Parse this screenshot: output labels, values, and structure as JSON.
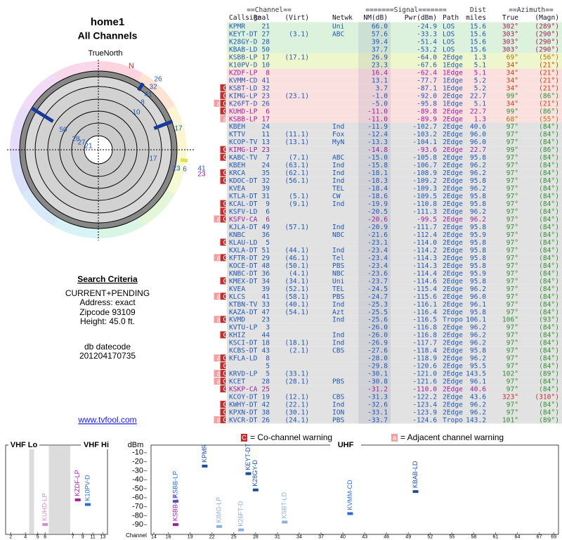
{
  "header": {
    "title": "home1",
    "subtitle": "All Channels",
    "north_label": "TrueNorth"
  },
  "polar": {
    "north": "N",
    "labels": [
      "26",
      "32",
      "41",
      "8",
      "10",
      "50",
      "28",
      "27",
      "21",
      "17",
      "17",
      "23",
      "6",
      "41",
      "23"
    ]
  },
  "criteria": {
    "heading": "Search Criteria",
    "lines": [
      "CURRENT+PENDING",
      "Address: exact",
      "Zipcode 93109",
      "Height: 45.0 ft."
    ],
    "db_label": "db datecode",
    "db_value": "201204170735",
    "link": "www.tvfool.com"
  },
  "table": {
    "group_headers": [
      "==Channel==",
      "=======Signal=======",
      "Dist",
      "==Azimuth=="
    ],
    "columns": [
      "Callsign",
      "Real",
      "(Virt)",
      "Netwk",
      "NM(dB)",
      "Pwr(dBm)",
      "Path",
      "miles",
      "True",
      "(Magn)"
    ],
    "rows": [
      [
        null,
        "KPMR",
        "21",
        null,
        "Uni",
        "66.0",
        "-24.9",
        "LOS",
        "15.6",
        "302°",
        "(289°)"
      ],
      [
        null,
        "KEYT-DT",
        "27",
        "(3.1)",
        "ABC",
        "57.6",
        "-33.3",
        "LOS",
        "15.6",
        "303°",
        "(290°)"
      ],
      [
        null,
        "K28GY-D",
        "28",
        null,
        null,
        "39.4",
        "-51.4",
        "LOS",
        "15.6",
        "303°",
        "(290°)"
      ],
      [
        null,
        "KBAB-LD",
        "50",
        null,
        null,
        "37.7",
        "-53.2",
        "LOS",
        "15.6",
        "303°",
        "(290°)"
      ],
      [
        null,
        "KSBB-LP",
        "17",
        "(17.1)",
        null,
        "26.9",
        "-64.0",
        "2Edge",
        "1.3",
        "69°",
        "(56°)"
      ],
      [
        null,
        "K10PV-D",
        "10",
        null,
        null,
        "23.3",
        "-67.6",
        "1Edge",
        "5.1",
        "34°",
        "(21°)"
      ],
      [
        null,
        "KZDF-LP",
        "8",
        null,
        null,
        "16.4",
        "-62.4",
        "1Edge",
        "5.1",
        "34°",
        "(21°)"
      ],
      [
        null,
        "KVMM-CD",
        "41",
        null,
        null,
        "13.1",
        "-77.7",
        "1Edge",
        "5.2",
        "34°",
        "(21°)"
      ],
      [
        "C",
        "KSBT-LD",
        "32",
        null,
        null,
        "3.7",
        "-87.1",
        "1Edge",
        "5.2",
        "34°",
        "(21°)"
      ],
      [
        "C",
        "KIMG-LP",
        "23",
        "(23.1)",
        null,
        "-1.0",
        "-92.0",
        "2Edge",
        "22.7",
        "99°",
        "(86°)"
      ],
      [
        "aC",
        "K26FT-D",
        "26",
        null,
        null,
        "-5.0",
        "-95.8",
        "1Edge",
        "5.1",
        "34°",
        "(21°)"
      ],
      [
        "C",
        "KUHD-LP",
        "6",
        null,
        null,
        "-11.0",
        "-89.8",
        "2Edge",
        "22.7",
        "99°",
        "(86°)"
      ],
      [
        "a",
        "KSBB-LP",
        "17",
        null,
        null,
        "-11.0",
        "-89.9",
        "2Edge",
        "1.3",
        "68°",
        "(55°)"
      ],
      [
        null,
        "KBEH",
        "24",
        null,
        "Ind",
        "-11.9",
        "-102.7",
        "2Edge",
        "40.6",
        "97°",
        "(84°)"
      ],
      [
        null,
        "KTTV",
        "11",
        "(11.1)",
        "Fox",
        "-12.4",
        "-103.2",
        "2Edge",
        "96.0",
        "97°",
        "(84°)"
      ],
      [
        null,
        "KCOP-TV",
        "13",
        "(13.1)",
        "MyN",
        "-13.3",
        "-104.1",
        "2Edge",
        "96.0",
        "97°",
        "(84°)"
      ],
      [
        "C",
        "KIMG-LP",
        "23",
        null,
        null,
        "-14.8",
        "-93.6",
        "2Edge",
        "22.7",
        "99°",
        "(86°)"
      ],
      [
        "C",
        "KABC-TV",
        "7",
        "(7.1)",
        "ABC",
        "-15.0",
        "-105.8",
        "2Edge",
        "95.8",
        "97°",
        "(84°)"
      ],
      [
        null,
        "KBEH",
        "24",
        "(63.1)",
        "Ind",
        "-15.8",
        "-106.7",
        "2Edge",
        "96.2",
        "97°",
        "(84°)"
      ],
      [
        "C",
        "KRCA",
        "35",
        "(62.1)",
        "Ind",
        "-18.1",
        "-108.9",
        "2Edge",
        "96.2",
        "97°",
        "(84°)"
      ],
      [
        "C",
        "KDOC-DT",
        "32",
        "(56.1)",
        "Ind",
        "-18.3",
        "-109.2",
        "2Edge",
        "95.8",
        "97°",
        "(84°)"
      ],
      [
        null,
        "KVEA",
        "39",
        null,
        "TEL",
        "-18.4",
        "-109.3",
        "2Edge",
        "96.2",
        "97°",
        "(84°)"
      ],
      [
        null,
        "KTLA-DT",
        "31",
        "(5.1)",
        "CW",
        "-18.6",
        "-109.5",
        "2Edge",
        "95.8",
        "97°",
        "(84°)"
      ],
      [
        "C",
        "KCAL-DT",
        "9",
        "(9.1)",
        "Ind",
        "-19.9",
        "-110.8",
        "2Edge",
        "95.8",
        "97°",
        "(84°)"
      ],
      [
        "C",
        "KSFV-LD",
        "6",
        null,
        null,
        "-20.5",
        "-111.3",
        "2Edge",
        "96.2",
        "97°",
        "(84°)"
      ],
      [
        "aC",
        "KSFV-CA",
        "6",
        null,
        null,
        "-20.6",
        "-99.5",
        "2Edge",
        "96.2",
        "97°",
        "(84°)"
      ],
      [
        null,
        "KJLA-DT",
        "49",
        "(57.1)",
        "Ind",
        "-20.9",
        "-111.7",
        "2Edge",
        "95.8",
        "97°",
        "(84°)"
      ],
      [
        null,
        "KNBC",
        "36",
        null,
        "NBC",
        "-21.6",
        "-112.4",
        "2Edge",
        "95.9",
        "97°",
        "(84°)"
      ],
      [
        "C",
        "KLAU-LD",
        "5",
        null,
        null,
        "-23.1",
        "-114.0",
        "2Edge",
        "95.8",
        "97°",
        "(84°)"
      ],
      [
        null,
        "KXLA-DT",
        "51",
        "(44.1)",
        "Ind",
        "-23.4",
        "-114.2",
        "2Edge",
        "95.8",
        "97°",
        "(84°)"
      ],
      [
        "aC",
        "KFTR-DT",
        "29",
        "(46.1)",
        "Tel",
        "-23.4",
        "-114.3",
        "2Edge",
        "95.8",
        "97°",
        "(84°)"
      ],
      [
        null,
        "KOCE-DT",
        "48",
        "(50.1)",
        "PBS",
        "-23.4",
        "-114.3",
        "2Edge",
        "95.8",
        "97°",
        "(84°)"
      ],
      [
        null,
        "KNBC-DT",
        "36",
        "(4.1)",
        "NBC",
        "-23.6",
        "-114.4",
        "2Edge",
        "95.9",
        "97°",
        "(84°)"
      ],
      [
        "C",
        "KMEX-DT",
        "34",
        "(34.1)",
        "Uni",
        "-23.7",
        "-114.6",
        "2Edge",
        "95.8",
        "97°",
        "(84°)"
      ],
      [
        null,
        "KVEA",
        "39",
        "(52.1)",
        "TEL",
        "-24.5",
        "-115.4",
        "2Edge",
        "96.2",
        "97°",
        "(84°)"
      ],
      [
        "aC",
        "KLCS",
        "41",
        "(58.1)",
        "PBS",
        "-24.7",
        "-115.6",
        "2Edge",
        "96.0",
        "97°",
        "(84°)"
      ],
      [
        null,
        "KTBN-TV",
        "33",
        "(40.1)",
        "Ind",
        "-25.3",
        "-116.1",
        "2Edge",
        "96.1",
        "97°",
        "(84°)"
      ],
      [
        null,
        "KAZA-DT",
        "47",
        "(54.1)",
        "Azt",
        "-25.5",
        "-116.4",
        "2Edge",
        "95.8",
        "97°",
        "(84°)"
      ],
      [
        "aC",
        "KVMD",
        "23",
        null,
        "Ind",
        "-25.6",
        "-116.5",
        "Tropo",
        "106.1",
        "106°",
        "(93°)"
      ],
      [
        null,
        "KVTU-LP",
        "3",
        null,
        null,
        "-26.0",
        "-116.8",
        "2Edge",
        "96.2",
        "97°",
        "(84°)"
      ],
      [
        "C",
        "KHIZ",
        "44",
        null,
        "Ind",
        "-26.0",
        "-116.8",
        "2Edge",
        "96.2",
        "97°",
        "(84°)"
      ],
      [
        null,
        "KSCI-DT",
        "18",
        "(18.1)",
        "Ind",
        "-26.9",
        "-117.7",
        "2Edge",
        "96.2",
        "97°",
        "(84°)"
      ],
      [
        null,
        "KCBS-DT",
        "43",
        "(2.1)",
        "CBS",
        "-27.6",
        "-118.4",
        "2Edge",
        "95.8",
        "97°",
        "(84°)"
      ],
      [
        "aC",
        "KFLA-LD",
        "8",
        null,
        null,
        "-28.0",
        "-118.9",
        "2Edge",
        "96.2",
        "97°",
        "(84°)"
      ],
      [
        "C",
        null,
        "5",
        null,
        null,
        "-29.8",
        "-120.6",
        "2Edge",
        "95.5",
        "97°",
        "(84°)"
      ],
      [
        "aC",
        "KRVD-LP",
        "5",
        "(33.1)",
        null,
        "-30.1",
        "-121.0",
        "2Edge",
        "143.5",
        "102°",
        "(89°)"
      ],
      [
        "aC",
        "KCET",
        "28",
        "(28.1)",
        "PBS",
        "-30.8",
        "-121.6",
        "2Edge",
        "96.1",
        "97°",
        "(84°)"
      ],
      [
        "C",
        "KSKP-CA",
        "25",
        null,
        null,
        "-31.2",
        "-110.0",
        "2Edge",
        "40.6",
        "97°",
        "(84°)"
      ],
      [
        null,
        "KCOY-DT",
        "19",
        "(12.1)",
        "CBS",
        "-31.3",
        "-122.2",
        "2Edge",
        "43.6",
        "323°",
        "(310°)"
      ],
      [
        "C",
        "KWHY-DT",
        "42",
        "(22.1)",
        "Ind",
        "-32.6",
        "-123.4",
        "2Edge",
        "96.2",
        "97°",
        "(84°)"
      ],
      [
        "C",
        "KPXN-DT",
        "38",
        "(30.1)",
        "ION",
        "-33.1",
        "-123.9",
        "2Edge",
        "96.2",
        "97°",
        "(84°)"
      ],
      [
        "aC",
        "KVCR-DT",
        "26",
        "(24.1)",
        "PBS",
        "-33.7",
        "-124.6",
        "Tropo",
        "143.2",
        "101°",
        "(89°)"
      ]
    ],
    "row_styles": [
      [
        "#dcf2dc",
        "#2058b8",
        "#a02060"
      ],
      [
        "#dcf2dc",
        "#2058b8",
        "#a02060"
      ],
      [
        "#dcf2dc",
        "#2058b8",
        "#a02060"
      ],
      [
        "#dcf2dc",
        "#2058b8",
        "#a02060"
      ],
      [
        "#eef6cc",
        "#2058b8",
        "#c07000"
      ],
      [
        "#eef6cc",
        "#2058b8",
        "#d04000"
      ],
      [
        "#fbe0e0",
        "#a020a0",
        "#d04000"
      ],
      [
        "#fbe0e0",
        "#2058b8",
        "#d04000"
      ],
      [
        "#fbe0e0",
        "#2058b8",
        "#d04000"
      ],
      [
        "#fbe0e0",
        "#2058b8",
        "#309030"
      ],
      [
        "#fbe0e0",
        "#2058b8",
        "#d04000"
      ],
      [
        "#fbe0e0",
        "#a020a0",
        "#309030"
      ],
      [
        "#fbe0e0",
        "#a020a0",
        "#c07000"
      ],
      [
        "#e2e2e2",
        "#2058b8",
        "#309030"
      ],
      [
        "#e2e2e2",
        "#2058b8",
        "#309030"
      ],
      [
        "#e2e2e2",
        "#2058b8",
        "#309030"
      ],
      [
        "#e2e2e2",
        "#a020a0",
        "#309030"
      ],
      [
        "#e2e2e2",
        "#2058b8",
        "#309030"
      ],
      [
        "#e2e2e2",
        "#2058b8",
        "#309030"
      ],
      [
        "#e2e2e2",
        "#2058b8",
        "#309030"
      ],
      [
        "#e2e2e2",
        "#2058b8",
        "#309030"
      ],
      [
        "#e2e2e2",
        "#2058b8",
        "#309030"
      ],
      [
        "#e2e2e2",
        "#2058b8",
        "#309030"
      ],
      [
        "#e2e2e2",
        "#2058b8",
        "#309030"
      ],
      [
        "#e2e2e2",
        "#2058b8",
        "#309030"
      ],
      [
        "#e2e2e2",
        "#a020a0",
        "#309030"
      ],
      [
        "#e2e2e2",
        "#2058b8",
        "#309030"
      ],
      [
        "#e2e2e2",
        "#2058b8",
        "#309030"
      ],
      [
        "#e2e2e2",
        "#2058b8",
        "#309030"
      ],
      [
        "#e2e2e2",
        "#2058b8",
        "#309030"
      ],
      [
        "#e2e2e2",
        "#2058b8",
        "#309030"
      ],
      [
        "#e2e2e2",
        "#2058b8",
        "#309030"
      ],
      [
        "#e2e2e2",
        "#2058b8",
        "#309030"
      ],
      [
        "#e2e2e2",
        "#2058b8",
        "#309030"
      ],
      [
        "#e2e2e2",
        "#2058b8",
        "#309030"
      ],
      [
        "#e2e2e2",
        "#2058b8",
        "#309030"
      ],
      [
        "#e2e2e2",
        "#2058b8",
        "#309030"
      ],
      [
        "#e2e2e2",
        "#2058b8",
        "#309030"
      ],
      [
        "#e2e2e2",
        "#2058b8",
        "#309030"
      ],
      [
        "#e2e2e2",
        "#2058b8",
        "#309030"
      ],
      [
        "#e2e2e2",
        "#2058b8",
        "#309030"
      ],
      [
        "#e2e2e2",
        "#2058b8",
        "#309030"
      ],
      [
        "#e2e2e2",
        "#2058b8",
        "#309030"
      ],
      [
        "#e2e2e2",
        "#2058b8",
        "#309030"
      ],
      [
        "#e2e2e2",
        "#2058b8",
        "#309030"
      ],
      [
        "#e2e2e2",
        "#2058b8",
        "#309030"
      ],
      [
        "#e2e2e2",
        "#2058b8",
        "#309030"
      ],
      [
        "#e2e2e2",
        "#a020a0",
        "#309030"
      ],
      [
        "#e2e2e2",
        "#2058b8",
        "#c03030"
      ],
      [
        "#e2e2e2",
        "#2058b8",
        "#309030"
      ],
      [
        "#e2e2e2",
        "#2058b8",
        "#309030"
      ],
      [
        "#e2e2e2",
        "#2058b8",
        "#309030"
      ]
    ]
  },
  "chart_data": {
    "type": "scatter",
    "y_label": "dBm",
    "x_label": "Channel",
    "bands": [
      "VHF Lo",
      "VHF Hi",
      "UHF"
    ],
    "legend": [
      {
        "mark": "C",
        "label": "= Co-channel warning",
        "color": "#c03030"
      },
      {
        "mark": "a",
        "label": "= Adjacent channel warning",
        "color": "#f0a0a0"
      }
    ],
    "ylim": [
      -100,
      0
    ],
    "yticks": [
      -10,
      -20,
      -30,
      -40,
      -50,
      -60,
      -70,
      -80,
      -90
    ],
    "xticks_vhf": [
      2,
      4,
      5,
      6,
      7,
      9,
      11,
      13
    ],
    "xticks_uhf": [
      14,
      16,
      19,
      22,
      25,
      28,
      31,
      34,
      37,
      40,
      43,
      46,
      49,
      52,
      55,
      58,
      61,
      64,
      67,
      69
    ],
    "series": [
      {
        "name": "KPMR",
        "color": "#1a4fa0",
        "x": [
          21
        ],
        "values": [
          -24.9
        ]
      },
      {
        "name": "KEYT-DT",
        "color": "#1a4fa0",
        "x": [
          27
        ],
        "values": [
          -33.3
        ]
      },
      {
        "name": "K28GY-D",
        "color": "#1a4fa0",
        "x": [
          28
        ],
        "values": [
          -51.4
        ]
      },
      {
        "name": "KBAB-LD",
        "color": "#1a4fa0",
        "x": [
          50
        ],
        "values": [
          -53.2
        ]
      },
      {
        "name": "KSBB-LP",
        "color": "#2a6fd0",
        "x": [
          17
        ],
        "values": [
          -64.0
        ]
      },
      {
        "name": "K10PV-D",
        "color": "#2a6fd0",
        "x": [
          10
        ],
        "values": [
          -67.6
        ]
      },
      {
        "name": "KZDF-LP",
        "color": "#a020a0",
        "x": [
          8
        ],
        "values": [
          -62.4
        ]
      },
      {
        "name": "KVMM-CD",
        "color": "#2a6fd0",
        "x": [
          41
        ],
        "values": [
          -77.7
        ]
      },
      {
        "name": "KSBT-LD",
        "color": "#8ab0e0",
        "x": [
          32
        ],
        "values": [
          -87.1
        ]
      },
      {
        "name": "KIMG-LP",
        "color": "#8ab0e0",
        "x": [
          23
        ],
        "values": [
          -92.0
        ]
      },
      {
        "name": "K26FT-D",
        "color": "#8ab0e0",
        "x": [
          26
        ],
        "values": [
          -95.8
        ]
      },
      {
        "name": "KUHD-LP",
        "color": "#d090d0",
        "x": [
          6
        ],
        "values": [
          -89.8
        ]
      },
      {
        "name": "KSBB-LP",
        "color": "#a020a0",
        "x": [
          17
        ],
        "values": [
          -89.9
        ]
      }
    ]
  }
}
